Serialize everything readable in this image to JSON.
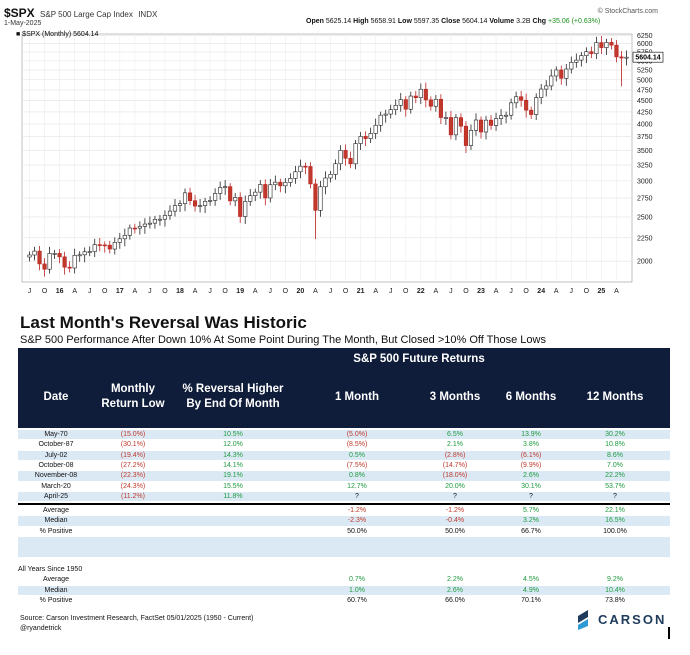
{
  "chart_header": {
    "symbol": "$SPX",
    "name": "S&P 500 Large Cap Index",
    "exchange": "INDX",
    "date": "1-May-2025",
    "open_label": "Open",
    "open": "5625.14",
    "high_label": "High",
    "high": "5658.91",
    "low_label": "Low",
    "low": "5597.35",
    "close_label": "Close",
    "close": "5604.14",
    "volume_label": "Volume",
    "volume": "3.2B",
    "chg_label": "Chg",
    "chg": "+35.06 (+0.63%)",
    "brand": "© StockCharts.com",
    "legend": "■ $SPX (Monthly) 5604.14",
    "last_price_tag": "5604.14"
  },
  "chart_data": {
    "type": "candlestick",
    "interval": "monthly",
    "yticks": [
      2000,
      2250,
      2500,
      2750,
      3000,
      3250,
      3500,
      3750,
      4000,
      4250,
      4500,
      4750,
      5000,
      5250,
      5500,
      5750,
      6000,
      6250
    ],
    "ylim": [
      1800,
      6300
    ],
    "scale": "log",
    "xticks": [
      "J",
      "O",
      "16",
      "A",
      "J",
      "O",
      "17",
      "A",
      "J",
      "O",
      "18",
      "A",
      "J",
      "O",
      "19",
      "A",
      "J",
      "O",
      "20",
      "A",
      "J",
      "O",
      "21",
      "A",
      "J",
      "O",
      "22",
      "A",
      "J",
      "O",
      "23",
      "A",
      "J",
      "O",
      "24",
      "A",
      "J",
      "O",
      "25",
      "A"
    ],
    "x_start": "2015-06",
    "closes": [
      2063,
      2104,
      1972,
      1920,
      2079,
      2080,
      2044,
      1940,
      1932,
      2060,
      2065,
      2097,
      2099,
      2174,
      2171,
      2168,
      2126,
      2199,
      2239,
      2279,
      2364,
      2363,
      2384,
      2412,
      2423,
      2470,
      2472,
      2519,
      2575,
      2648,
      2674,
      2824,
      2714,
      2641,
      2648,
      2705,
      2718,
      2816,
      2902,
      2914,
      2712,
      2760,
      2506,
      2704,
      2784,
      2834,
      2946,
      2752,
      2942,
      2980,
      2926,
      2977,
      3038,
      3141,
      3231,
      3226,
      2954,
      2585,
      2912,
      3044,
      3100,
      3271,
      3500,
      3363,
      3270,
      3622,
      3756,
      3714,
      3811,
      3973,
      4181,
      4204,
      4298,
      4395,
      4523,
      4308,
      4605,
      4567,
      4766,
      4516,
      4374,
      4530,
      4132,
      4132,
      3785,
      4130,
      3955,
      3586,
      3872,
      4080,
      3840,
      4077,
      3970,
      4109,
      4169,
      4180,
      4450,
      4589,
      4508,
      4288,
      4194,
      4568,
      4770,
      4846,
      5096,
      5254,
      5036,
      5278,
      5460,
      5522,
      5648,
      5762,
      5705,
      6032,
      5882,
      6040,
      5955,
      5612,
      5580,
      5604
    ]
  },
  "report": {
    "title": "Last Month's Reversal Was Historic",
    "subtitle": "S&P 500 Performance After Down 10% At Some Point During The Month, But Closed >10% Off Those Lows",
    "future_header": "S&P 500 Future Returns",
    "col_date": "Date",
    "col_monthly_1": "Monthly",
    "col_monthly_2": "Return Low",
    "col_reversal_1": "% Reversal Higher",
    "col_reversal_2": "By End Of Month",
    "col_1m": "1 Month",
    "col_3m": "3 Months",
    "col_6m": "6 Months",
    "col_12m": "12 Months",
    "rows": [
      {
        "date": "May-70",
        "low": "(15.0%)",
        "rev": "10.5%",
        "m1": "(5.0%)",
        "m3": "6.5%",
        "m6": "13.9%",
        "m12": "30.2%"
      },
      {
        "date": "October-87",
        "low": "(30.1%)",
        "rev": "12.0%",
        "m1": "(8.5%)",
        "m3": "2.1%",
        "m6": "3.8%",
        "m12": "10.8%"
      },
      {
        "date": "July-02",
        "low": "(19.4%)",
        "rev": "14.3%",
        "m1": "0.5%",
        "m3": "(2.8%)",
        "m6": "(6.1%)",
        "m12": "8.6%"
      },
      {
        "date": "October-08",
        "low": "(27.2%)",
        "rev": "14.1%",
        "m1": "(7.5%)",
        "m3": "(14.7%)",
        "m6": "(9.9%)",
        "m12": "7.0%"
      },
      {
        "date": "November-08",
        "low": "(22.3%)",
        "rev": "19.1%",
        "m1": "0.8%",
        "m3": "(18.0%)",
        "m6": "2.6%",
        "m12": "22.2%"
      },
      {
        "date": "March-20",
        "low": "(24.3%)",
        "rev": "15.5%",
        "m1": "12.7%",
        "m3": "20.0%",
        "m6": "30.1%",
        "m12": "53.7%"
      },
      {
        "date": "April-25",
        "low": "(11.2%)",
        "rev": "11.8%",
        "m1": "?",
        "m3": "?",
        "m6": "?",
        "m12": "?"
      }
    ],
    "summary": [
      {
        "label": "Average",
        "m1": "-1.2%",
        "m3": "-1.2%",
        "m6": "5.7%",
        "m12": "22.1%"
      },
      {
        "label": "Median",
        "m1": "-2.3%",
        "m3": "-0.4%",
        "m6": "3.2%",
        "m12": "16.5%"
      },
      {
        "label": "% Positive",
        "m1": "50.0%",
        "m3": "50.0%",
        "m6": "66.7%",
        "m12": "100.0%"
      }
    ],
    "all_years_label": "All Years Since 1950",
    "all_years": [
      {
        "label": "Average",
        "m1": "0.7%",
        "m3": "2.2%",
        "m6": "4.5%",
        "m12": "9.2%"
      },
      {
        "label": "Median",
        "m1": "1.0%",
        "m3": "2.6%",
        "m6": "4.9%",
        "m12": "10.4%"
      },
      {
        "label": "% Positive",
        "m1": "60.7%",
        "m3": "66.0%",
        "m6": "70.1%",
        "m12": "73.8%"
      }
    ],
    "source": "Source: Carson Investment Research, FactSet 05/01/2025 (1950 - Current)",
    "handle": "@ryandetrick",
    "logo_text": "CARSON"
  },
  "colors": {
    "header_bg": "#0f1d3a",
    "band": "#dbe9f5",
    "negative": "#c0392b",
    "positive": "#1e9a3f",
    "candle_up": "#ffffff",
    "candle_down": "#c0392b"
  }
}
